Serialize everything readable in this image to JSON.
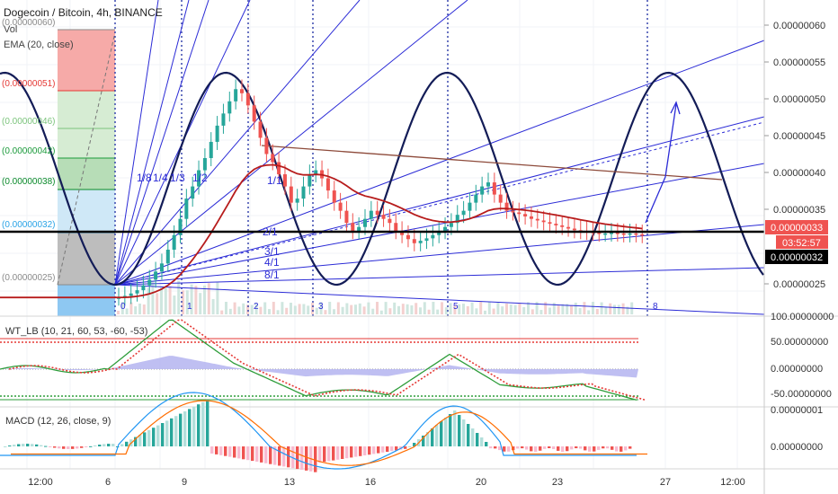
{
  "header": {
    "title": "Dogecoin / Bitcoin, 4h, BINANCE",
    "vol_label": "Vol",
    "ema_label": "EMA (20, close)"
  },
  "fib_levels": [
    {
      "label": "(0.00000060)",
      "color": "#8a8a8a"
    },
    {
      "label": "(0.00000051)",
      "color": "#e53935"
    },
    {
      "label": "(0.00000046)",
      "color": "#7cc47c"
    },
    {
      "label": "(0.00000042)",
      "color": "#1a9a3a"
    },
    {
      "label": "(0.00000038)",
      "color": "#0a8a2a"
    },
    {
      "label": "(0.00000032)",
      "color": "#29a3e6"
    },
    {
      "label": "(0.00000025)",
      "color": "#8a8a8a"
    }
  ],
  "fan_labels": [
    "1/8",
    "1/4",
    "1/3",
    "1/2",
    "1/1",
    "2/1",
    "3/1",
    "4/1",
    "8/1"
  ],
  "fib_time_labels": [
    "0",
    "1",
    "2",
    "3",
    "5",
    "8"
  ],
  "price_axis": {
    "ticks": [
      "0.00000060",
      "0.00000055",
      "0.00000050",
      "0.00000045",
      "0.00000040",
      "0.00000035",
      "0.00000025"
    ],
    "current_price": "0.00000033",
    "countdown": "03:52:57",
    "line_price": "0.00000032"
  },
  "time_axis": [
    "12:00",
    "6",
    "9",
    "13",
    "16",
    "20",
    "23",
    "27",
    "12:00"
  ],
  "wt_panel": {
    "label": "WT_LB (10, 21, 60, 53, -60, -53)",
    "ticks": [
      "100.00000000",
      "50.00000000",
      "0.00000000",
      "-50.00000000"
    ]
  },
  "macd_panel": {
    "label": "MACD (12, 26, close, 9)",
    "ticks": [
      "0.00000001",
      "0.00000000"
    ]
  },
  "colors": {
    "up": "#26a69a",
    "down": "#ef5350",
    "ema": "#b71c1c",
    "fan": "#2b2bd6",
    "sine": "#131c57",
    "trend": "#8d4a3a",
    "price_tag": "#ef5350",
    "line_tag": "#000000"
  },
  "chart_data": {
    "type": "candlestick",
    "symbol": "Dogecoin / Bitcoin",
    "interval": "4h",
    "exchange": "BINANCE",
    "x_labels": [
      "12:00",
      "6",
      "9",
      "13",
      "16",
      "20",
      "23",
      "27",
      "12:00"
    ],
    "ylim": [
      2.3e-07,
      6.2e-07
    ],
    "indicators": [
      "Vol",
      "EMA (20, close)",
      "WT_LB (10, 21, 60, 53, -60, -53)",
      "MACD (12, 26, close, 9)"
    ],
    "close_series": [
      2.53e-07,
      2.55e-07,
      2.58e-07,
      2.62e-07,
      2.68e-07,
      2.75e-07,
      2.85e-07,
      2.95e-07,
      3.12e-07,
      3.3e-07,
      3.5e-07,
      3.75e-07,
      3.9e-07,
      4.1e-07,
      4.25e-07,
      4.45e-07,
      4.65e-07,
      4.8e-07,
      4.95e-07,
      5.1e-07,
      5.05e-07,
      4.9e-07,
      4.7e-07,
      4.5e-07,
      4.3e-07,
      4.2e-07,
      4.05e-07,
      3.9e-07,
      3.7e-07,
      3.75e-07,
      3.9e-07,
      4.05e-07,
      4.1e-07,
      4e-07,
      3.85e-07,
      3.7e-07,
      3.6e-07,
      3.45e-07,
      3.35e-07,
      3.4e-07,
      3.5e-07,
      3.6e-07,
      3.55e-07,
      3.5e-07,
      3.45e-07,
      3.35e-07,
      3.3e-07,
      3.25e-07,
      3.2e-07,
      3.23e-07,
      3.26e-07,
      3.3e-07,
      3.35e-07,
      3.4e-07,
      3.45e-07,
      3.55e-07,
      3.6e-07,
      3.7e-07,
      3.8e-07,
      3.9e-07,
      3.95e-07,
      3.8e-07,
      3.7e-07,
      3.6e-07,
      3.58e-07,
      3.56e-07,
      3.53e-07,
      3.5e-07,
      3.48e-07,
      3.46e-07,
      3.44e-07,
      3.42e-07,
      3.4e-07,
      3.38e-07,
      3.36e-07,
      3.35e-07,
      3.34e-07,
      3.33e-07,
      3.32e-07,
      3.32e-07,
      3.33e-07,
      3.32e-07,
      3.31e-07,
      3.32e-07,
      3.31e-07,
      3.3e-07
    ]
  }
}
